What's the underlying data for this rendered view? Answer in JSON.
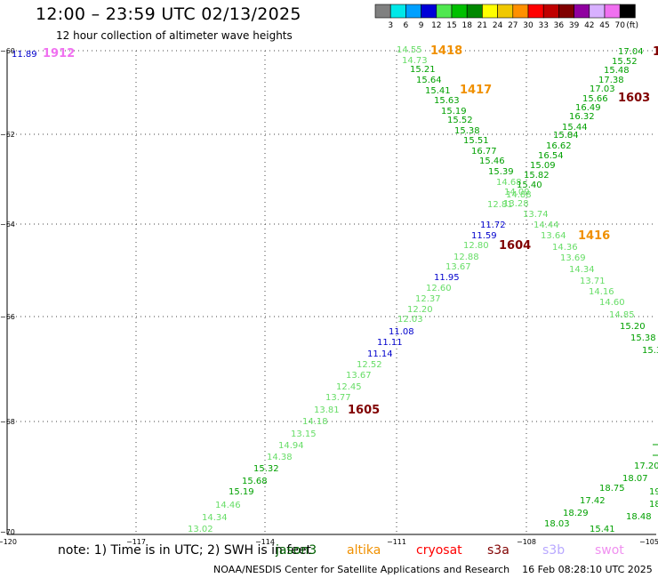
{
  "header": {
    "title": "12:00 – 23:59 UTC 02/13/2025",
    "subtitle": "12 hour collection of altimeter wave heights"
  },
  "colorbar": {
    "colors": [
      "#808080",
      "#00e8e8",
      "#00a0ff",
      "#0000d8",
      "#50e850",
      "#00c000",
      "#008800",
      "#ffff00",
      "#f0c800",
      "#ff9000",
      "#ff0000",
      "#c00000",
      "#800000",
      "#9000a0",
      "#d8b0ff",
      "#f070f0",
      "#000000"
    ],
    "labels": [
      "3",
      "6",
      "9",
      "12",
      "15",
      "18",
      "21",
      "24",
      "27",
      "30",
      "33",
      "36",
      "39",
      "42",
      "45",
      "70"
    ],
    "unit": "(ft)"
  },
  "axes": {
    "lon_labels": [
      "−120",
      "−117",
      "−114",
      "−111",
      "−108",
      "−105"
    ],
    "lat_labels": [
      "−60",
      "−62",
      "−64",
      "−66",
      "−68",
      "−70"
    ]
  },
  "tracks": {
    "green_descending": [
      "14.55",
      "14.73",
      "15.21",
      "15.64",
      "15.41",
      "15.63",
      "15.19",
      "15.52",
      "15.38",
      "15.51",
      "16.77",
      "15.46",
      "15.39",
      "14.68",
      "14.09",
      "12.81",
      "11.72",
      "11.59",
      "12.80",
      "12.88",
      "13.67",
      "11.95",
      "12.60",
      "12.37",
      "12.20",
      "12.03",
      "11.08",
      "11.11",
      "11.14",
      "12.52",
      "13.67",
      "12.45",
      "13.77",
      "13.81",
      "14.18",
      "13.15",
      "14.94",
      "14.38",
      "15.32",
      "15.68",
      "15.19",
      "14.46",
      "14.34",
      "13.02"
    ],
    "green_ascending": [
      "17.04",
      "15.52",
      "15.48",
      "17.38",
      "17.03",
      "15.66",
      "16.49",
      "16.32",
      "15.44",
      "15.84",
      "16.62",
      "16.54",
      "15.09",
      "15.82",
      "15.40",
      "14.88",
      "13.28",
      "13.74",
      "14.44",
      "13.64",
      "14.36",
      "13.69",
      "14.34",
      "13.71",
      "14.16",
      "14.60",
      "14.85",
      "15.20",
      "15.38",
      "15.3"
    ],
    "right_bottom": [
      "17.20",
      "18.07",
      "18.75",
      "17.42",
      "18.29",
      "18.48",
      "18.03",
      "15.41",
      "19",
      "18.8"
    ],
    "labels": [
      {
        "text": "11.89",
        "name": "value-11-89"
      },
      {
        "text": "1912",
        "name": "pass-1912"
      },
      {
        "text": "1418",
        "name": "pass-1418"
      },
      {
        "text": "1417",
        "name": "pass-1417"
      },
      {
        "text": "1603",
        "name": "pass-1603"
      },
      {
        "text": "1604",
        "name": "pass-1604"
      },
      {
        "text": "1416",
        "name": "pass-1416"
      },
      {
        "text": "1605",
        "name": "pass-1605"
      },
      {
        "text": "1",
        "name": "pass-partial"
      }
    ]
  },
  "notes": {
    "note": "note: 1) Time is in UTC; 2) SWH is in feet",
    "jason": "jason3",
    "altika": "altika",
    "cryosat": "cryosat",
    "s3a": "s3a",
    "s3b": "s3b",
    "swot": "swot"
  },
  "footer": "NOAA/NESDIS Center for Satellite Applications and Research    16 Feb 08:28:10 UTC 2025"
}
